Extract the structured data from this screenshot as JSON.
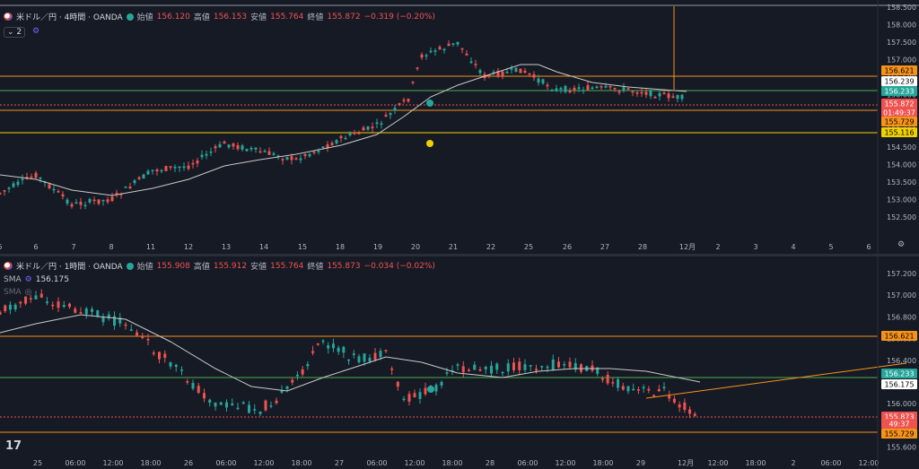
{
  "top": {
    "symbol": "米ドル／円 · 4時間 · OANDA",
    "open_label": "始値",
    "open": "156.120",
    "high_label": "高値",
    "high": "156.153",
    "low_label": "安値",
    "low": "155.764",
    "close_label": "終値",
    "close": "155.872",
    "change": "−0.319 (−0.20%)",
    "indicator_count": "2",
    "price_axis": [
      "158.500",
      "158.000",
      "157.500",
      "157.000",
      "156.500",
      "156.000",
      "155.500",
      "155.000",
      "154.500",
      "154.000",
      "153.500",
      "153.000",
      "152.500"
    ],
    "time_axis": [
      "5",
      "6",
      "7",
      "8",
      "11",
      "12",
      "13",
      "14",
      "15",
      "18",
      "19",
      "20",
      "21",
      "22",
      "25",
      "26",
      "27",
      "28",
      "12月",
      "2",
      "3",
      "4",
      "5",
      "6"
    ],
    "price_tags": [
      {
        "text": "156.621",
        "color": "#f7931a"
      },
      {
        "text": "156.239",
        "color": "#ffffff"
      },
      {
        "text": "156.233",
        "color": "#26a69a"
      },
      {
        "text": "155.872",
        "color": "#ef5350"
      },
      {
        "text": "01:49:37",
        "color": "#ef5350"
      },
      {
        "text": "155.729",
        "color": "#f7931a"
      },
      {
        "text": "155.116",
        "color": "#f0d000"
      }
    ]
  },
  "bottom": {
    "symbol": "米ドル／円 · 1時間 · OANDA",
    "open_label": "始値",
    "open": "155.908",
    "high_label": "高値",
    "high": "155.912",
    "low_label": "安値",
    "low": "155.764",
    "close_label": "終値",
    "close": "155.873",
    "change": "−0.034 (−0.02%)",
    "sma_label": "SMA",
    "sma_value": "156.175",
    "sma2_label": "SMA",
    "price_axis": [
      "157.200",
      "157.000",
      "156.800",
      "156.600",
      "156.400",
      "156.200",
      "156.000",
      "155.800",
      "155.600"
    ],
    "time_axis": [
      "25",
      "06:00",
      "12:00",
      "18:00",
      "26",
      "06:00",
      "12:00",
      "18:00",
      "27",
      "06:00",
      "12:00",
      "18:00",
      "28",
      "06:00",
      "12:00",
      "18:00",
      "29",
      "12月",
      "12:00",
      "18:00",
      "2",
      "06:00",
      "12:00"
    ],
    "price_tags": [
      {
        "text": "156.621",
        "color": "#f7931a"
      },
      {
        "text": "156.233",
        "color": "#26a69a"
      },
      {
        "text": "156.175",
        "color": "#ffffff"
      },
      {
        "text": "155.873",
        "color": "#ef5350"
      },
      {
        "text": "49:37",
        "color": "#ef5350"
      },
      {
        "text": "155.729",
        "color": "#f7931a"
      }
    ]
  },
  "colors": {
    "up": "#26a69a",
    "down": "#ef5350",
    "orange": "#f7931a",
    "yellow": "#f0d000",
    "green_line": "#4caf50",
    "sma": "#c9c9c9"
  }
}
